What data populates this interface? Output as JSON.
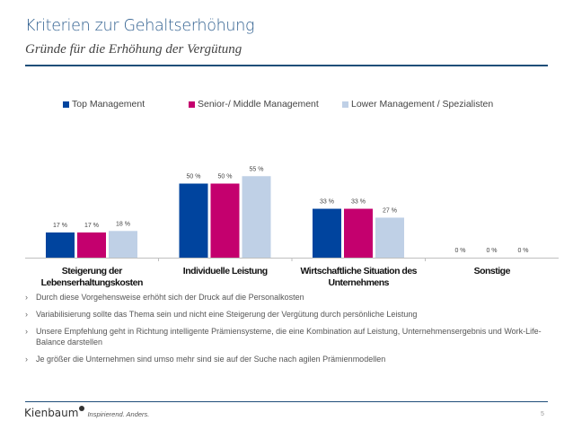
{
  "header": {
    "title": "Kriterien zur Gehaltserhöhung",
    "subtitle": "Gründe für die Erhöhung der Vergütung"
  },
  "colors": {
    "top": "#00449e",
    "senior": "#c4006e",
    "lower": "#bfd0e6",
    "rule": "#1f4e79",
    "title": "#2f5f8f"
  },
  "chart_data": {
    "type": "bar",
    "title": "",
    "xlabel": "",
    "ylabel": "",
    "ylim": [
      0,
      60
    ],
    "grid": false,
    "legend_position": "top",
    "value_suffix": " %",
    "categories": [
      "Steigerung der Lebenserhaltungskosten",
      "Individuelle Leistung",
      "Wirtschaftliche Situation des Unternehmens",
      "Sonstige"
    ],
    "category_lines": [
      [
        "Steigerung der",
        "Lebenserhaltungskosten"
      ],
      [
        "Individuelle Leistung"
      ],
      [
        "Wirtschaftliche Situation des",
        "Unternehmens"
      ],
      [
        "Sonstige"
      ]
    ],
    "series": [
      {
        "name": "Top Management",
        "color": "#00449e",
        "values": [
          17,
          50,
          33,
          0
        ]
      },
      {
        "name": "Senior-/ Middle Management",
        "color": "#c4006e",
        "values": [
          17,
          50,
          33,
          0
        ]
      },
      {
        "name": "Lower Management / Spezialisten",
        "color": "#bfd0e6",
        "values": [
          18,
          55,
          27,
          0
        ]
      }
    ]
  },
  "bullets": [
    "Durch diese Vorgehensweise erhöht sich der Druck auf die Personalkosten",
    "Variabilisierung sollte das Thema sein und nicht eine Steigerung der Vergütung durch persönliche Leistung",
    "Unsere Empfehlung geht in Richtung intelligente Prämiensysteme, die eine Kombination auf Leistung, Unternehmensergebnis und Work-Life-Balance darstellen",
    "Je größer die Unternehmen sind umso mehr sind sie auf der Suche nach agilen Prämienmodellen"
  ],
  "bullet_marker": "›",
  "footer": {
    "brand": "Kienbaum",
    "tagline": "Inspirierend. Anders.",
    "page_number": "5"
  }
}
